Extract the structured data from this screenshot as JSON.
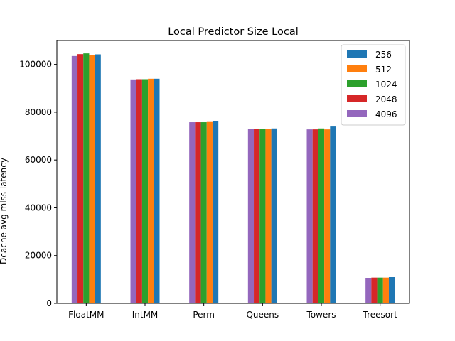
{
  "chart_data": {
    "type": "bar",
    "title": "Local Predictor Size Local",
    "xlabel": "",
    "ylabel": "Dcache avg miss latency",
    "categories": [
      "FloatMM",
      "IntMM",
      "Perm",
      "Queens",
      "Towers",
      "Treesort"
    ],
    "ylim": [
      0,
      110000
    ],
    "yticks": [
      0,
      20000,
      40000,
      60000,
      80000,
      100000
    ],
    "legend_position": "top-right",
    "grid": false,
    "series": [
      {
        "name": "256",
        "color": "#1f77b4",
        "values": [
          104200,
          94000,
          76200,
          73200,
          74000,
          11000
        ]
      },
      {
        "name": "512",
        "color": "#ff7f0e",
        "values": [
          104000,
          94000,
          75900,
          73100,
          72800,
          10800
        ]
      },
      {
        "name": "1024",
        "color": "#2ca02c",
        "values": [
          104600,
          93800,
          75800,
          73100,
          73200,
          10800
        ]
      },
      {
        "name": "2048",
        "color": "#d62728",
        "values": [
          104300,
          93800,
          75800,
          73100,
          72800,
          10800
        ]
      },
      {
        "name": "4096",
        "color": "#9467bd",
        "values": [
          103500,
          93700,
          75800,
          73100,
          72800,
          10700
        ]
      }
    ]
  }
}
